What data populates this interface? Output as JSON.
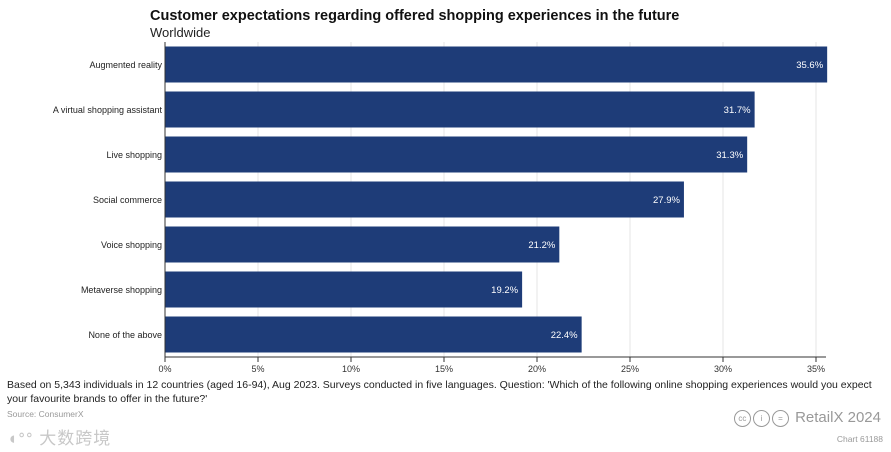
{
  "chart_data": {
    "type": "bar",
    "orientation": "horizontal",
    "title": "Customer expectations regarding offered shopping experiences in the future",
    "subtitle": "Worldwide",
    "categories": [
      "Augmented reality",
      "A virtual shopping assistant",
      "Live shopping",
      "Social commerce",
      "Voice shopping",
      "Metaverse shopping",
      "None of the above"
    ],
    "values": [
      35.6,
      31.7,
      31.3,
      27.9,
      21.2,
      19.2,
      22.4
    ],
    "value_labels": [
      "35.6%",
      "31.7%",
      "31.3%",
      "27.9%",
      "21.2%",
      "19.2%",
      "22.4%"
    ],
    "xlim": [
      0,
      35
    ],
    "xticks": [
      0,
      5,
      10,
      15,
      20,
      25,
      30,
      35
    ],
    "xtick_labels": [
      "0%",
      "5%",
      "10%",
      "15%",
      "20%",
      "25%",
      "30%",
      "35%"
    ],
    "xlabel": "",
    "ylabel": "",
    "grid": true,
    "bar_color": "#1e3c78"
  },
  "footer": {
    "note": "Based on 5,343 individuals in 12 countries (aged 16-94), Aug 2023. Surveys conducted in five languages. Question: 'Which of the following online shopping experiences would you expect your favourite brands to offer in the future?'",
    "source": "Source: ConsumerX",
    "watermark": "大数跨境",
    "brand": "RetailX  2024",
    "chart_id": "Chart 61188"
  }
}
